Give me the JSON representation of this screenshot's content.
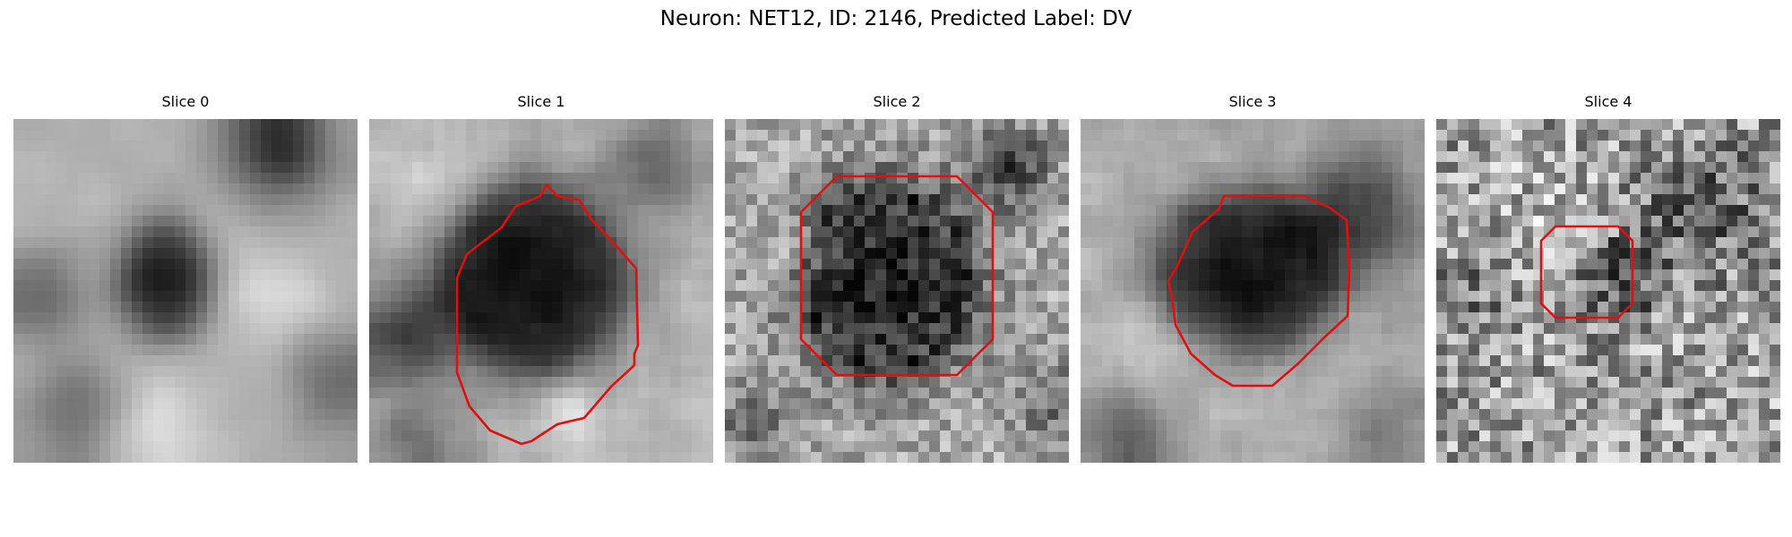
{
  "figure": {
    "title": "Neuron: NET12, ID: 2146, Predicted Label: DV"
  },
  "panels": [
    {
      "title": "Slice 0",
      "has_contour": false
    },
    {
      "title": "Slice 1",
      "has_contour": true
    },
    {
      "title": "Slice 2",
      "has_contour": true
    },
    {
      "title": "Slice 3",
      "has_contour": true
    },
    {
      "title": "Slice 4",
      "has_contour": true
    }
  ],
  "colors": {
    "contour": "#e01010",
    "background": "#ffffff"
  }
}
